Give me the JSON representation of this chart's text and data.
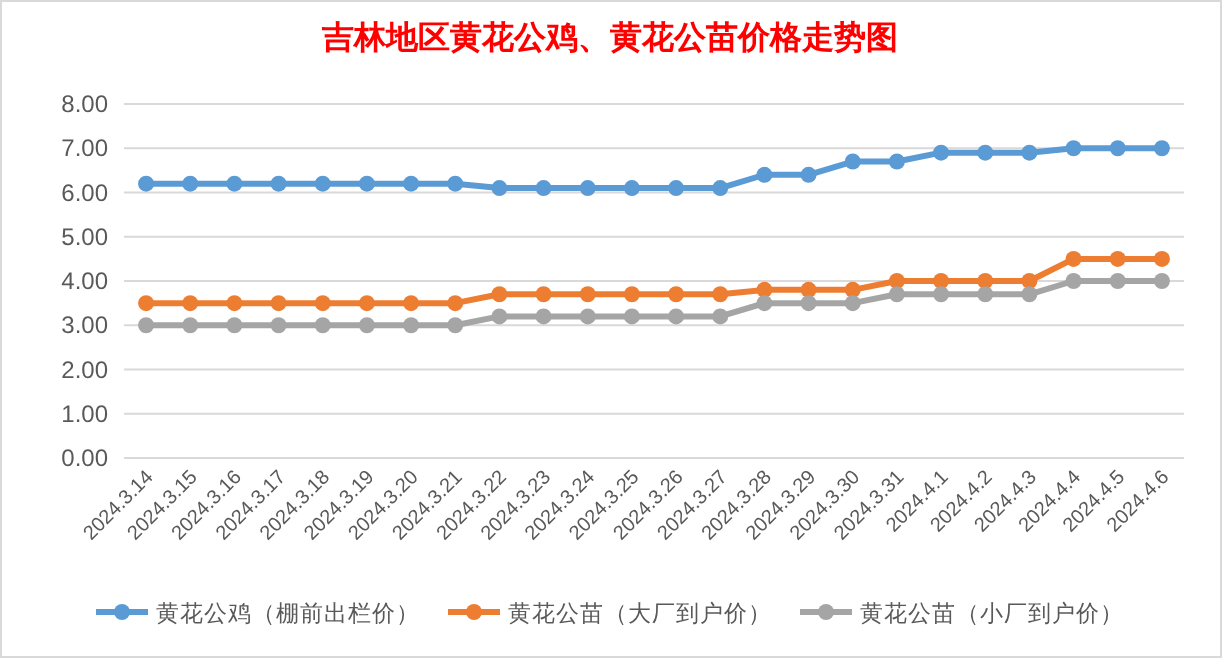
{
  "chart_data": {
    "type": "line",
    "title": "吉林地区黄花公鸡、黄花公苗价格走势图",
    "categories": [
      "2024.3.14",
      "2024.3.15",
      "2024.3.16",
      "2024.3.17",
      "2024.3.18",
      "2024.3.19",
      "2024.3.20",
      "2024.3.21",
      "2024.3.22",
      "2024.3.23",
      "2024.3.24",
      "2024.3.25",
      "2024.3.26",
      "2024.3.27",
      "2024.3.28",
      "2024.3.29",
      "2024.3.30",
      "2024.3.31",
      "2024.4.1",
      "2024.4.2",
      "2024.4.3",
      "2024.4.4",
      "2024.4.5",
      "2024.4.6"
    ],
    "series": [
      {
        "name": "黄花公鸡（棚前出栏价）",
        "color": "#5b9bd5",
        "values": [
          6.2,
          6.2,
          6.2,
          6.2,
          6.2,
          6.2,
          6.2,
          6.2,
          6.1,
          6.1,
          6.1,
          6.1,
          6.1,
          6.1,
          6.4,
          6.4,
          6.7,
          6.7,
          6.9,
          6.9,
          6.9,
          7.0,
          7.0,
          7.0
        ]
      },
      {
        "name": "黄花公苗（大厂到户价）",
        "color": "#ed7d31",
        "values": [
          3.5,
          3.5,
          3.5,
          3.5,
          3.5,
          3.5,
          3.5,
          3.5,
          3.7,
          3.7,
          3.7,
          3.7,
          3.7,
          3.7,
          3.8,
          3.8,
          3.8,
          4.0,
          4.0,
          4.0,
          4.0,
          4.5,
          4.5,
          4.5
        ]
      },
      {
        "name": "黄花公苗（小厂到户价）",
        "color": "#a5a5a5",
        "values": [
          3.0,
          3.0,
          3.0,
          3.0,
          3.0,
          3.0,
          3.0,
          3.0,
          3.2,
          3.2,
          3.2,
          3.2,
          3.2,
          3.2,
          3.5,
          3.5,
          3.5,
          3.7,
          3.7,
          3.7,
          3.7,
          4.0,
          4.0,
          4.0
        ]
      }
    ],
    "ylim": [
      0,
      8
    ],
    "yticks": [
      {
        "value": 0,
        "label": "0.00"
      },
      {
        "value": 1,
        "label": "1.00"
      },
      {
        "value": 2,
        "label": "2.00"
      },
      {
        "value": 3,
        "label": "3.00"
      },
      {
        "value": 4,
        "label": "4.00"
      },
      {
        "value": 5,
        "label": "5.00"
      },
      {
        "value": 6,
        "label": "6.00"
      },
      {
        "value": 7,
        "label": "7.00"
      },
      {
        "value": 8,
        "label": "8.00"
      }
    ],
    "grid": "y",
    "legend": "bottom",
    "marker": "circle",
    "line_style": "solid"
  }
}
